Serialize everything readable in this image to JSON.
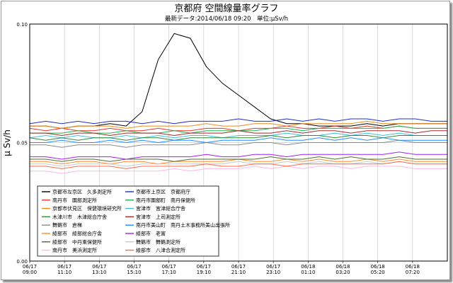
{
  "chart_data": {
    "type": "line",
    "title": "京都府 空間線量率グラフ",
    "subtitle": "最新データ:2014/06/18 09:20　単位:μSv/h",
    "ylabel": "μ Sv/h",
    "xlabel": "",
    "ylim": [
      0.0,
      0.1
    ],
    "y_ticks": [
      "0.00",
      "0.05",
      "0.10"
    ],
    "x_range": [
      "2014-06-17 09:00",
      "2014-06-18 09:20"
    ],
    "x_ticks": [
      [
        "06/17",
        "09:00"
      ],
      [
        "06/17",
        "11:10"
      ],
      [
        "06/17",
        "13:10"
      ],
      [
        "06/17",
        "15:10"
      ],
      [
        "06/17",
        "17:10"
      ],
      [
        "06/17",
        "19:10"
      ],
      [
        "06/17",
        "21:10"
      ],
      [
        "06/17",
        "23:10"
      ],
      [
        "06/18",
        "01:10"
      ],
      [
        "06/18",
        "03:20"
      ],
      [
        "06/18",
        "05:20"
      ],
      [
        "06/18",
        "07:20"
      ]
    ],
    "grid": true,
    "legend_position": "lower-left",
    "series": [
      {
        "name": "京都市左京区　久多測定所",
        "color": "#000000",
        "values": [
          0.057,
          0.057,
          0.056,
          0.057,
          0.057,
          0.058,
          0.057,
          0.063,
          0.085,
          0.096,
          0.094,
          0.082,
          0.075,
          0.07,
          0.065,
          0.06,
          0.058,
          0.058,
          0.057,
          0.057,
          0.057,
          0.058,
          0.057,
          0.058,
          0.058,
          0.058,
          0.058
        ]
      },
      {
        "name": "京都市上京区　京都府庁",
        "color": "#1f2fbf",
        "values": [
          0.058,
          0.059,
          0.058,
          0.059,
          0.058,
          0.059,
          0.059,
          0.058,
          0.059,
          0.058,
          0.059,
          0.059,
          0.059,
          0.06,
          0.059,
          0.059,
          0.06,
          0.059,
          0.06,
          0.059,
          0.06,
          0.06,
          0.059,
          0.06,
          0.06,
          0.059,
          0.059
        ]
      },
      {
        "name": "南丹市　園部測定所",
        "color": "#e2362b",
        "values": [
          0.056,
          0.055,
          0.056,
          0.055,
          0.055,
          0.056,
          0.055,
          0.055,
          0.056,
          0.055,
          0.055,
          0.056,
          0.056,
          0.055,
          0.056,
          0.056,
          0.057,
          0.056,
          0.056,
          0.057,
          0.056,
          0.057,
          0.056,
          0.057,
          0.056,
          0.056,
          0.056
        ]
      },
      {
        "name": "南丹市園部町　南丹保健所",
        "color": "#22b24c",
        "values": [
          0.054,
          0.054,
          0.054,
          0.055,
          0.054,
          0.054,
          0.055,
          0.054,
          0.054,
          0.055,
          0.054,
          0.055,
          0.055,
          0.055,
          0.055,
          0.056,
          0.056,
          0.055,
          0.056,
          0.056,
          0.056,
          0.056,
          0.056,
          0.057,
          0.056,
          0.056,
          0.056
        ]
      },
      {
        "name": "京都市伏見区　保健環境研究所",
        "color": "#f08a1d",
        "values": [
          0.057,
          0.057,
          0.056,
          0.057,
          0.057,
          0.057,
          0.056,
          0.057,
          0.057,
          0.057,
          0.057,
          0.058,
          0.057,
          0.057,
          0.058,
          0.058,
          0.057,
          0.058,
          0.058,
          0.058,
          0.058,
          0.059,
          0.058,
          0.058,
          0.058,
          0.058,
          0.058
        ]
      },
      {
        "name": "宮津市　宮津総合庁舎",
        "color": "#3fbfdc",
        "values": [
          0.052,
          0.053,
          0.052,
          0.053,
          0.052,
          0.052,
          0.053,
          0.052,
          0.053,
          0.052,
          0.053,
          0.053,
          0.052,
          0.053,
          0.053,
          0.053,
          0.054,
          0.053,
          0.053,
          0.054,
          0.053,
          0.054,
          0.053,
          0.054,
          0.053,
          0.053,
          0.053
        ]
      },
      {
        "name": "木津川市　木津総合庁舎",
        "color": "#2f8a38",
        "values": [
          0.052,
          0.051,
          0.052,
          0.051,
          0.052,
          0.052,
          0.051,
          0.052,
          0.052,
          0.051,
          0.052,
          0.052,
          0.052,
          0.052,
          0.052,
          0.053,
          0.052,
          0.053,
          0.053,
          0.052,
          0.053,
          0.053,
          0.052,
          0.053,
          0.053,
          0.053,
          0.053
        ]
      },
      {
        "name": "宮津市　上司測定所",
        "color": "#a52a2a",
        "values": [
          0.054,
          0.054,
          0.053,
          0.054,
          0.054,
          0.053,
          0.054,
          0.054,
          0.054,
          0.053,
          0.054,
          0.054,
          0.054,
          0.055,
          0.054,
          0.054,
          0.055,
          0.054,
          0.055,
          0.055,
          0.054,
          0.055,
          0.055,
          0.055,
          0.054,
          0.055,
          0.055
        ]
      },
      {
        "name": "舞鶴市　倉梯",
        "color": "#8a8a8a",
        "values": [
          0.049,
          0.049,
          0.048,
          0.049,
          0.049,
          0.049,
          0.048,
          0.049,
          0.049,
          0.049,
          0.049,
          0.05,
          0.049,
          0.049,
          0.05,
          0.05,
          0.049,
          0.05,
          0.05,
          0.05,
          0.05,
          0.05,
          0.05,
          0.051,
          0.05,
          0.05,
          0.05
        ]
      },
      {
        "name": "南丹市美山町　南丹土木事務所美山出張所",
        "color": "#1e90ff",
        "values": [
          0.05,
          0.05,
          0.051,
          0.05,
          0.05,
          0.051,
          0.05,
          0.051,
          0.05,
          0.051,
          0.051,
          0.05,
          0.051,
          0.051,
          0.051,
          0.052,
          0.051,
          0.051,
          0.052,
          0.051,
          0.052,
          0.051,
          0.052,
          0.051,
          0.051,
          0.051,
          0.051
        ]
      },
      {
        "name": "綾部市　綾部総合庁舎",
        "color": "#ff8c28",
        "values": [
          0.042,
          0.042,
          0.041,
          0.042,
          0.042,
          0.041,
          0.042,
          0.042,
          0.041,
          0.042,
          0.042,
          0.042,
          0.042,
          0.043,
          0.042,
          0.042,
          0.043,
          0.042,
          0.043,
          0.042,
          0.042,
          0.043,
          0.042,
          0.043,
          0.042,
          0.042,
          0.042
        ]
      },
      {
        "name": "綾部市　老富",
        "color": "#a020f0",
        "values": [
          0.044,
          0.044,
          0.043,
          0.044,
          0.044,
          0.044,
          0.043,
          0.044,
          0.044,
          0.044,
          0.044,
          0.045,
          0.044,
          0.044,
          0.045,
          0.045,
          0.044,
          0.045,
          0.045,
          0.045,
          0.045,
          0.045,
          0.045,
          0.046,
          0.045,
          0.045,
          0.045
        ]
      },
      {
        "name": "綾部市　中丹東保健所",
        "color": "#556b2f",
        "values": [
          0.043,
          0.043,
          0.042,
          0.043,
          0.043,
          0.042,
          0.043,
          0.043,
          0.043,
          0.042,
          0.043,
          0.043,
          0.043,
          0.043,
          0.043,
          0.044,
          0.043,
          0.043,
          0.044,
          0.043,
          0.044,
          0.043,
          0.043,
          0.044,
          0.043,
          0.043,
          0.043
        ]
      },
      {
        "name": "舞鶴市　舞鶴測定所",
        "color": "#c8c8c8",
        "values": [
          0.041,
          0.041,
          0.04,
          0.041,
          0.041,
          0.041,
          0.04,
          0.041,
          0.041,
          0.041,
          0.041,
          0.041,
          0.041,
          0.042,
          0.041,
          0.041,
          0.042,
          0.041,
          0.042,
          0.041,
          0.041,
          0.042,
          0.041,
          0.042,
          0.041,
          0.041,
          0.041
        ]
      },
      {
        "name": "南丹市　美浜測定所",
        "color": "#ffb6e6",
        "values": [
          0.038,
          0.038,
          0.037,
          0.038,
          0.038,
          0.038,
          0.038,
          0.038,
          0.038,
          0.039,
          0.038,
          0.039,
          0.039,
          0.039,
          0.04,
          0.039,
          0.04,
          0.039,
          0.04,
          0.04,
          0.039,
          0.04,
          0.04,
          0.04,
          0.039,
          0.039,
          0.039
        ]
      },
      {
        "name": "綾部市　八津合測定所",
        "color": "#ff6a4a",
        "values": [
          0.04,
          0.04,
          0.039,
          0.04,
          0.04,
          0.04,
          0.039,
          0.04,
          0.04,
          0.04,
          0.04,
          0.041,
          0.04,
          0.04,
          0.041,
          0.041,
          0.04,
          0.041,
          0.041,
          0.041,
          0.041,
          0.041,
          0.041,
          0.042,
          0.041,
          0.041,
          0.041
        ]
      }
    ]
  }
}
